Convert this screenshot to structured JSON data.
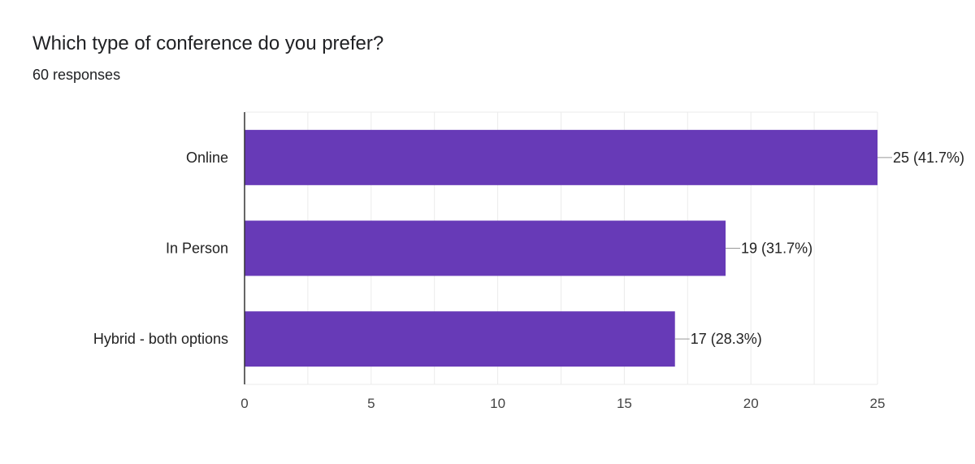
{
  "question": {
    "title": "Which type of conference do you prefer?",
    "responses": "60 responses"
  },
  "colors": {
    "bar": "#673ab7",
    "grid": "#ebebeb",
    "axis": "#333333",
    "text": "#202124"
  },
  "chart_data": {
    "type": "bar",
    "orientation": "horizontal",
    "categories": [
      "Online",
      "In Person",
      "Hybrid - both options"
    ],
    "values": [
      25,
      19,
      17
    ],
    "data_labels": [
      "25 (41.7%)",
      "19 (31.7%)",
      "17 (28.3%)"
    ],
    "xticks": [
      0,
      5,
      10,
      15,
      20,
      25
    ],
    "xlim": [
      0,
      25
    ],
    "grid": true,
    "title": "Which type of conference do you prefer?",
    "xlabel": "",
    "ylabel": ""
  }
}
